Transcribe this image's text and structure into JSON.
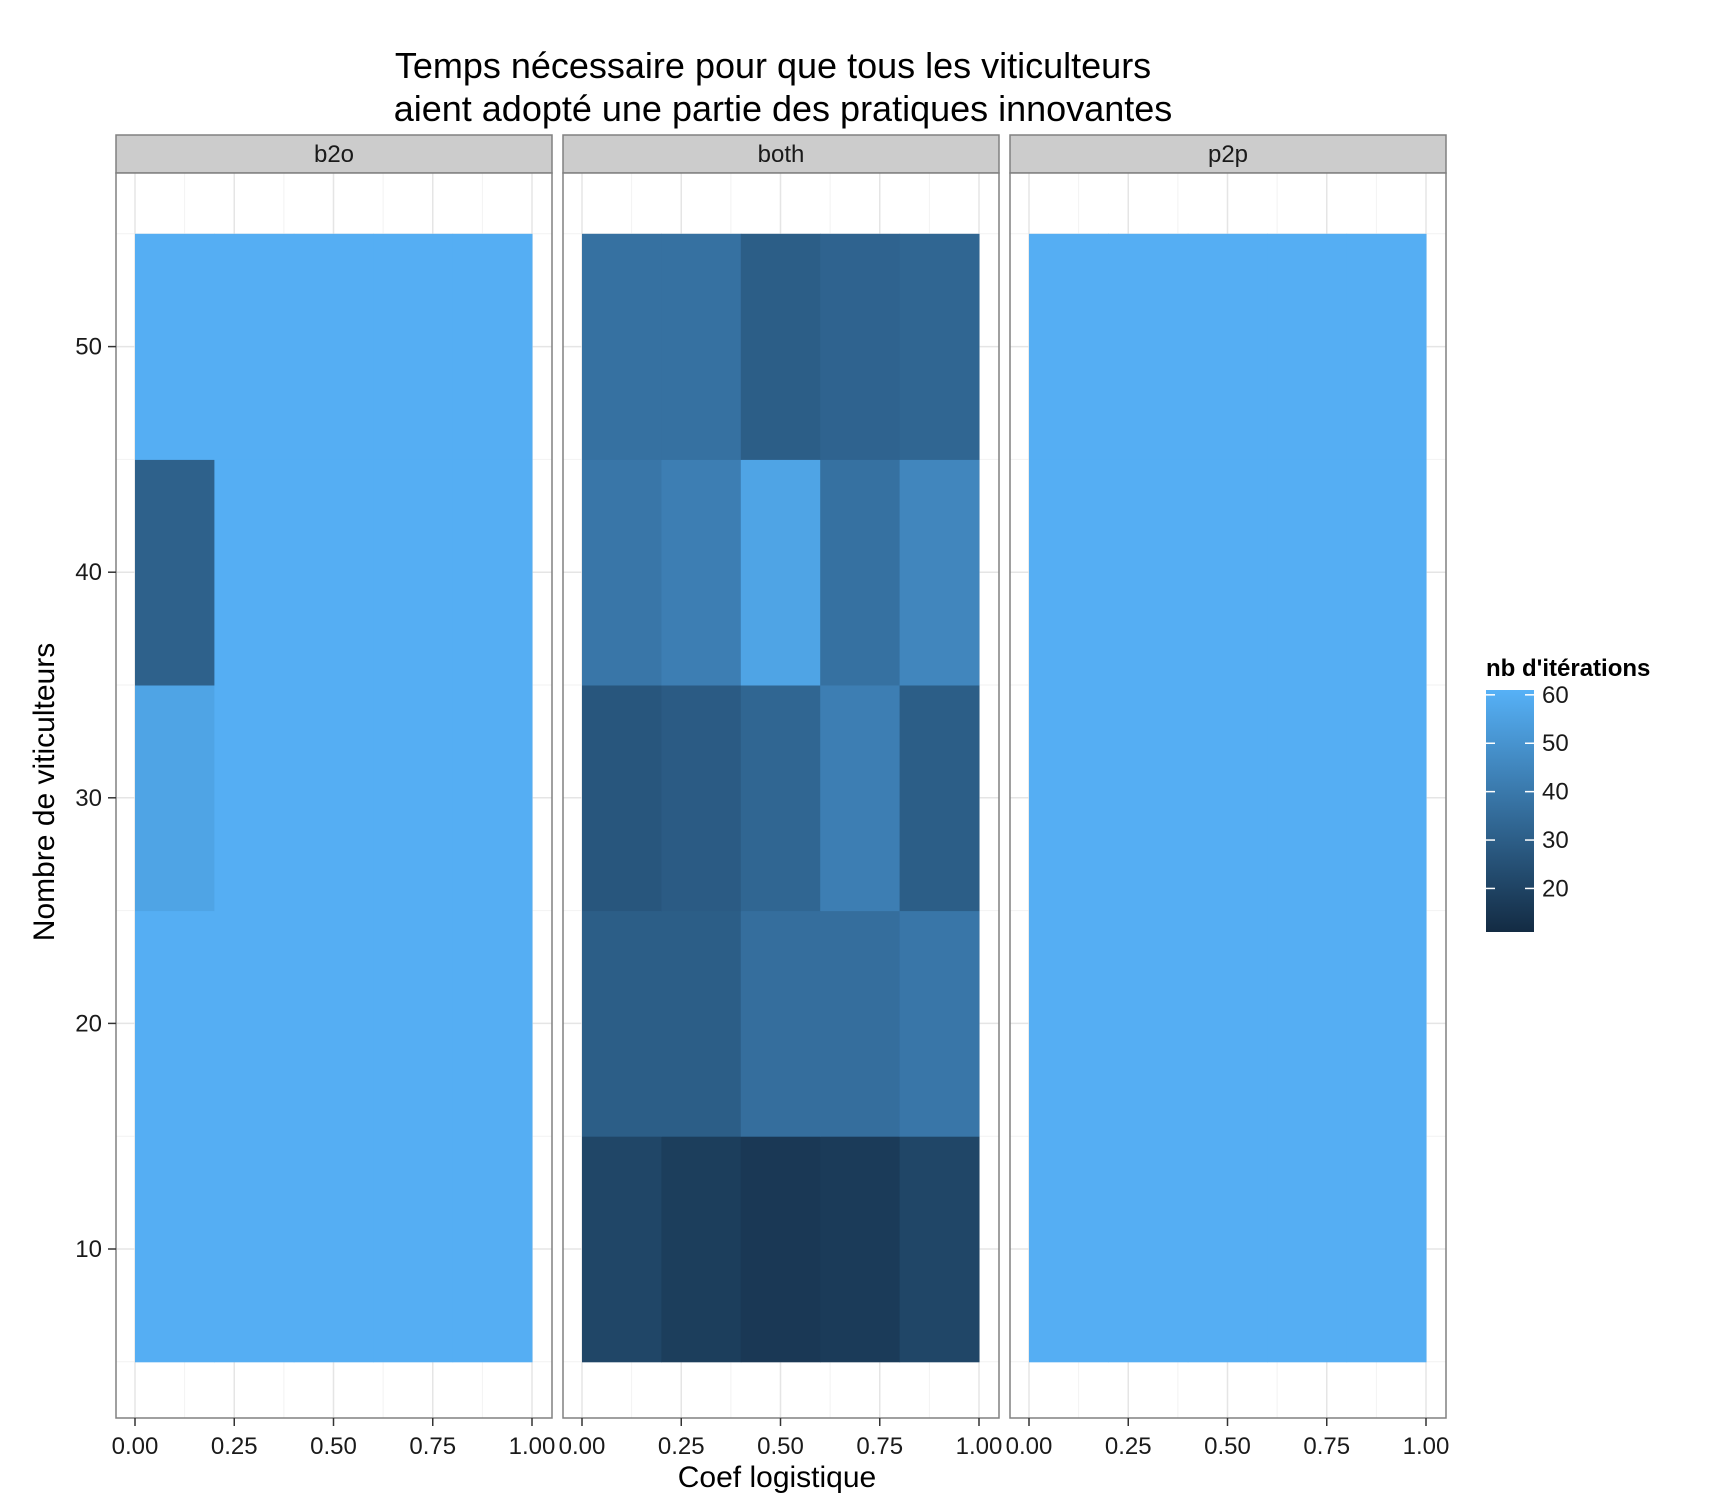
{
  "chart_data": {
    "type": "heatmap",
    "title": [
      "Temps nécessaire pour que tous les viticulteurs",
      "aient adopté une partie des pratiques innovantes"
    ],
    "xlabel": "Coef logistique",
    "ylabel": "Nombre de viticulteurs",
    "x_ticks": [
      "0.00",
      "0.25",
      "0.50",
      "0.75",
      "1.00"
    ],
    "y_ticks": [
      "10",
      "20",
      "30",
      "40",
      "50"
    ],
    "xlim": [
      0,
      1
    ],
    "ylim": [
      5,
      55
    ],
    "facets": [
      "b2o",
      "both",
      "p2p"
    ],
    "x_bins": [
      0.1,
      0.3,
      0.5,
      0.7,
      0.9
    ],
    "y_bins": [
      10,
      20,
      30,
      40,
      50
    ],
    "cell_width": 0.2,
    "cell_height": 10,
    "values": {
      "b2o": [
        [
          60,
          60,
          60,
          60,
          60
        ],
        [
          60,
          60,
          60,
          60,
          60
        ],
        [
          56,
          60,
          60,
          60,
          60
        ],
        [
          31,
          60,
          60,
          60,
          60
        ],
        [
          60,
          60,
          60,
          60,
          60
        ]
      ],
      "both": [
        [
          21,
          18,
          16,
          17,
          21
        ],
        [
          30,
          30,
          36,
          36,
          39
        ],
        [
          27,
          29,
          33,
          42,
          30
        ],
        [
          39,
          42,
          56,
          37,
          45
        ],
        [
          37,
          37,
          30,
          32,
          33
        ]
      ],
      "p2p": [
        [
          60,
          60,
          60,
          60,
          60
        ],
        [
          60,
          60,
          60,
          60,
          60
        ],
        [
          60,
          60,
          60,
          60,
          60
        ],
        [
          60,
          60,
          60,
          60,
          60
        ],
        [
          60,
          60,
          60,
          60,
          60
        ]
      ]
    },
    "legend": {
      "title": "nb d'itérations",
      "ticks": [
        "20",
        "30",
        "40",
        "50",
        "60"
      ],
      "range": [
        11,
        61
      ],
      "low_color": "#132B43",
      "high_color": "#56B1F7"
    },
    "grid": true,
    "legend_position": "right"
  }
}
